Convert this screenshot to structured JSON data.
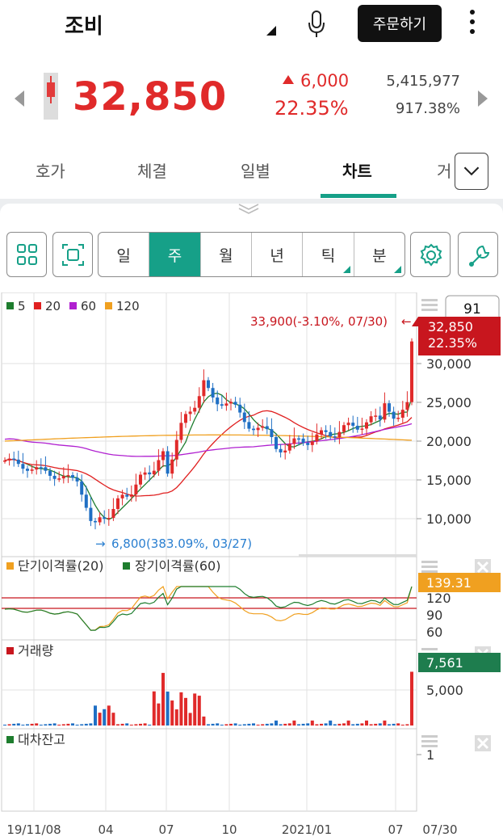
{
  "header": {
    "stock_name": "조비",
    "order_label": "주문하기"
  },
  "quote": {
    "price": "32,850",
    "change_amount": "6,000",
    "change_percent": "22.35%",
    "volume": "5,415,977",
    "volume_rate": "917.38%"
  },
  "tabs": [
    {
      "label": "호가"
    },
    {
      "label": "체결"
    },
    {
      "label": "일별"
    },
    {
      "label": "차트"
    },
    {
      "label": "거"
    }
  ],
  "periods": [
    {
      "label": "일"
    },
    {
      "label": "주"
    },
    {
      "label": "월"
    },
    {
      "label": "년"
    },
    {
      "label": "틱"
    },
    {
      "label": "분"
    }
  ],
  "colors": {
    "accent": "#16a088",
    "up": "#e02a2a",
    "down": "#1f6fc4"
  },
  "chart": {
    "count_box": "91",
    "legend": [
      {
        "label": "5",
        "color": "#1e7d2e"
      },
      {
        "label": "20",
        "color": "#e02020"
      },
      {
        "label": "60",
        "color": "#b020d0"
      },
      {
        "label": "120",
        "color": "#f0a020"
      }
    ],
    "high_label": "33,900(-3.10%, 07/30)",
    "low_label": "6,800(383.09%, 03/27)",
    "current_price_tag": "32,850",
    "current_pct_tag": "22.35%",
    "price_ticks": [
      "30,000",
      "25,000",
      "20,000",
      "15,000",
      "10,000"
    ],
    "disparity_legend": [
      {
        "label": "단기이격률(20)",
        "color": "#f0a020"
      },
      {
        "label": "장기이격률(60)",
        "color": "#1e7d2e"
      }
    ],
    "disparity_tag": "139.31",
    "disparity_ticks": [
      "120",
      "90",
      "60"
    ],
    "volume_label": "거래량",
    "volume_tag": "7,561",
    "volume_ticks": [
      "5,000"
    ],
    "loan_label": "대차잔고",
    "loan_ticks": [
      "1"
    ],
    "x_ticks": [
      "19/11/08",
      "04",
      "07",
      "10",
      "2021/01",
      "07",
      "07/30"
    ]
  },
  "chart_data": {
    "type": "candlestick",
    "x_ticks": [
      "19/11/08",
      "04",
      "07",
      "10",
      "2021/01",
      "07",
      "07/30"
    ],
    "y_ticks": [
      30000,
      25000,
      20000,
      15000,
      10000
    ],
    "high": {
      "value": 33900,
      "change": "-3.10%",
      "date": "07/30"
    },
    "low": {
      "value": 6800,
      "change": "383.09%",
      "date": "03/27"
    },
    "last": {
      "value": 32850,
      "change": "22.35%"
    },
    "ma_periods": [
      5,
      20,
      60,
      120
    ],
    "disparity_last": 139.31,
    "volume_last": 7561
  }
}
